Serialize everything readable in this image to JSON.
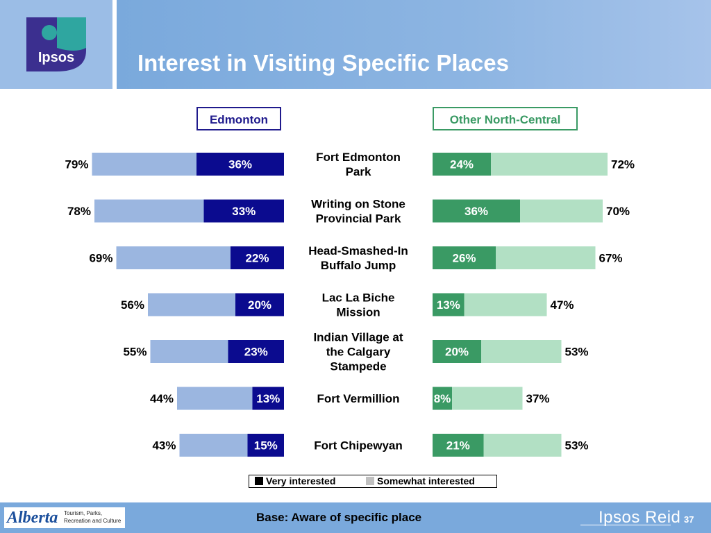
{
  "header": {
    "logo_text": "Ipsos",
    "title": "Interest in Visiting Specific Places"
  },
  "regions": {
    "left": "Edmonton",
    "right": "Other North-Central"
  },
  "chart_data": {
    "type": "bar",
    "orientation": "horizontal",
    "layout": "back-to-back stacked",
    "categories": [
      "Fort Edmonton Park",
      "Writing on Stone Provincial Park",
      "Head-Smashed-In Buffalo Jump",
      "Lac La Biche Mission",
      "Indian Village at the Calgary Stampede",
      "Fort Vermillion",
      "Fort Chipewyan"
    ],
    "category_lines": [
      [
        "Fort Edmonton",
        "Park"
      ],
      [
        "Writing on Stone",
        "Provincial Park"
      ],
      [
        "Head-Smashed-In",
        "Buffalo Jump"
      ],
      [
        "Lac La Biche",
        "Mission"
      ],
      [
        "Indian Village at",
        "the Calgary",
        "Stampede"
      ],
      [
        "Fort Vermillion"
      ],
      [
        "Fort Chipewyan"
      ]
    ],
    "panels": [
      {
        "name": "Edmonton",
        "very_interested": [
          36,
          33,
          22,
          20,
          23,
          13,
          15
        ],
        "total_interested": [
          79,
          78,
          69,
          56,
          55,
          44,
          43
        ],
        "colors": {
          "very": "#0b0b8f",
          "somewhat": "#9bb6e0"
        }
      },
      {
        "name": "Other North-Central",
        "very_interested": [
          24,
          36,
          26,
          13,
          20,
          8,
          21
        ],
        "total_interested": [
          72,
          70,
          67,
          47,
          53,
          37,
          53
        ],
        "colors": {
          "very": "#3a9a64",
          "somewhat": "#b2e0c4"
        }
      }
    ],
    "legend": [
      "Very interested",
      "Somewhat interested"
    ],
    "legend_colors": [
      "#000000",
      "#c0c0c0"
    ],
    "legend_position": "bottom",
    "unit": "%"
  },
  "footer": {
    "alberta_word": "Alberta",
    "alberta_dept": "Tourism, Parks, Recreation and Culture",
    "base_note": "Base: Aware of specific place",
    "ipsos_reid": "Ipsos Reid",
    "page_number": "37"
  }
}
